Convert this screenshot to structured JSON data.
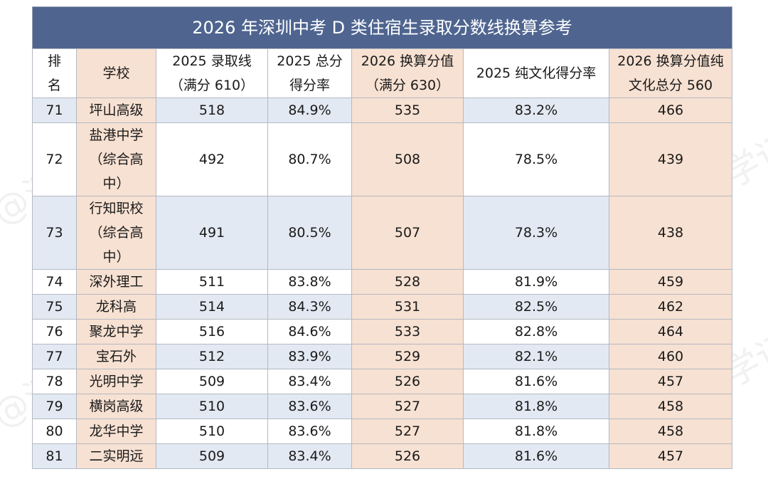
{
  "title": "2026 年深圳中考 D 类住宿生录取分数线换算参考",
  "watermark": "@深学记",
  "headers": [
    "排名",
    "学校",
    "2025 录取线（满分 610）",
    "2025 总分得分率",
    "2026 换算分值（满分 630）",
    "2025 纯文化得分率",
    "2026 换算分值纯文化总分 560"
  ],
  "rows": [
    {
      "rank": "71",
      "school": "坪山高级",
      "line2025": "518",
      "rate2025": "84.9%",
      "conv2026": "535",
      "culture_rate2025": "83.2%",
      "culture_conv2026": "466"
    },
    {
      "rank": "72",
      "school": "盐港中学（综合高中）",
      "line2025": "492",
      "rate2025": "80.7%",
      "conv2026": "508",
      "culture_rate2025": "78.5%",
      "culture_conv2026": "439"
    },
    {
      "rank": "73",
      "school": "行知职校（综合高中）",
      "line2025": "491",
      "rate2025": "80.5%",
      "conv2026": "507",
      "culture_rate2025": "78.3%",
      "culture_conv2026": "438"
    },
    {
      "rank": "74",
      "school": "深外理工",
      "line2025": "511",
      "rate2025": "83.8%",
      "conv2026": "528",
      "culture_rate2025": "81.9%",
      "culture_conv2026": "459"
    },
    {
      "rank": "75",
      "school": "龙科高",
      "line2025": "514",
      "rate2025": "84.3%",
      "conv2026": "531",
      "culture_rate2025": "82.5%",
      "culture_conv2026": "462"
    },
    {
      "rank": "76",
      "school": "聚龙中学",
      "line2025": "516",
      "rate2025": "84.6%",
      "conv2026": "533",
      "culture_rate2025": "82.8%",
      "culture_conv2026": "464"
    },
    {
      "rank": "77",
      "school": "宝石外",
      "line2025": "512",
      "rate2025": "83.9%",
      "conv2026": "529",
      "culture_rate2025": "82.1%",
      "culture_conv2026": "460"
    },
    {
      "rank": "78",
      "school": "光明中学",
      "line2025": "509",
      "rate2025": "83.4%",
      "conv2026": "526",
      "culture_rate2025": "81.6%",
      "culture_conv2026": "457"
    },
    {
      "rank": "79",
      "school": "横岗高级",
      "line2025": "510",
      "rate2025": "83.6%",
      "conv2026": "527",
      "culture_rate2025": "81.8%",
      "culture_conv2026": "458"
    },
    {
      "rank": "80",
      "school": "龙华中学",
      "line2025": "510",
      "rate2025": "83.6%",
      "conv2026": "527",
      "culture_rate2025": "81.8%",
      "culture_conv2026": "458"
    },
    {
      "rank": "81",
      "school": "二实明远",
      "line2025": "509",
      "rate2025": "83.4%",
      "conv2026": "526",
      "culture_rate2025": "81.6%",
      "culture_conv2026": "457"
    }
  ]
}
